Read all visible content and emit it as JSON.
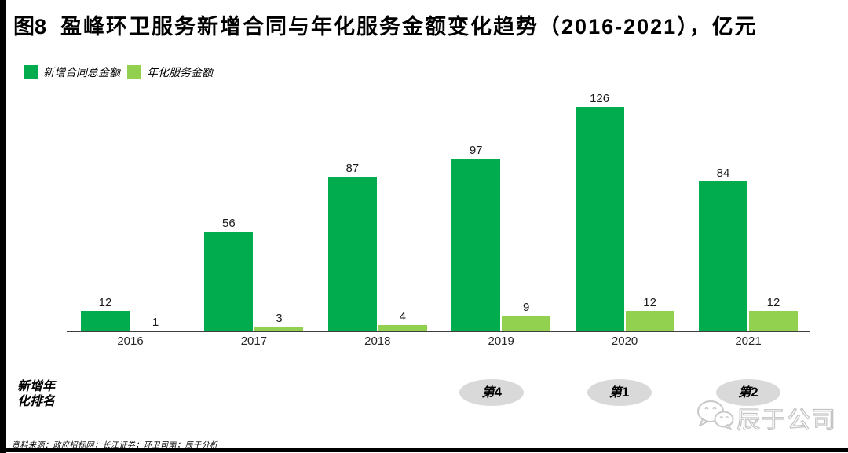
{
  "title": {
    "prefix": "图8",
    "text": "盈峰环卫服务新增合同与年化服务金额变化趋势（2016-2021），亿元"
  },
  "legend": [
    {
      "label": "新增合同总金额",
      "color": "#00AC4E"
    },
    {
      "label": "年化服务金额",
      "color": "#92D050"
    }
  ],
  "chart_data": {
    "type": "bar",
    "title": "盈峰环卫服务新增合同与年化服务金额变化趋势（2016-2021），亿元",
    "categories": [
      "2016",
      "2017",
      "2018",
      "2019",
      "2020",
      "2021"
    ],
    "series": [
      {
        "name": "新增合同总金额",
        "color": "#00AC4E",
        "values": [
          12,
          56,
          87,
          97,
          126,
          84
        ]
      },
      {
        "name": "年化服务金额",
        "color": "#92D050",
        "values": [
          1,
          3,
          4,
          9,
          12,
          12
        ]
      }
    ],
    "ylim": [
      0,
      140
    ],
    "grid": false,
    "value_labels": true,
    "legend_position": "top-left"
  },
  "ranking": {
    "row_label_lines": [
      "新增年",
      "化排名"
    ],
    "items": [
      {
        "category": "2019",
        "label": "第4"
      },
      {
        "category": "2020",
        "label": "第1"
      },
      {
        "category": "2021",
        "label": "第2"
      }
    ],
    "bubble_color": "#D9D9D9"
  },
  "source_note": "资料来源：政府招标网；长江证券；环卫司南；辰于分析",
  "watermark": {
    "text": "辰于公司",
    "icon": "wechat-icon"
  }
}
